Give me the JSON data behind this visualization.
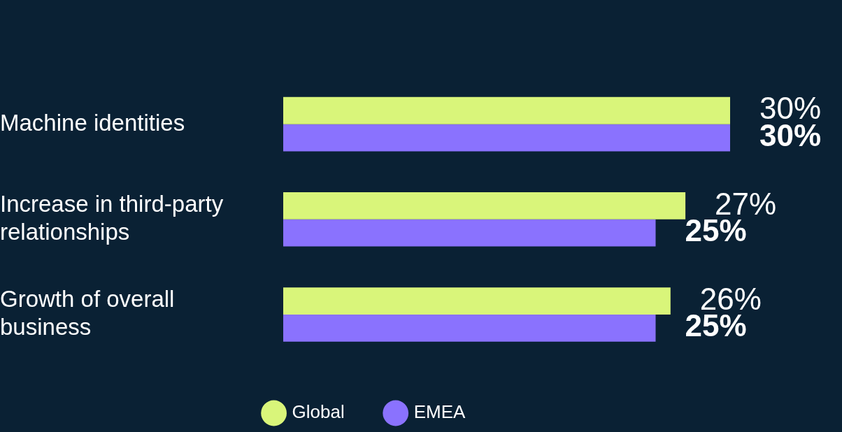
{
  "chart_data": {
    "type": "bar",
    "orientation": "horizontal",
    "categories": [
      "Machine identities",
      "Increase in third-party relationships",
      "Growth of overall business"
    ],
    "series": [
      {
        "name": "Global",
        "color": "#d9f57a",
        "values": [
          30,
          27,
          26
        ],
        "value_labels": [
          "30%",
          "27%",
          "26%"
        ]
      },
      {
        "name": "EMEA",
        "color": "#8a72fe",
        "values": [
          30,
          25,
          25
        ],
        "value_labels": [
          "30%",
          "25%",
          "25%"
        ]
      }
    ],
    "xlim": [
      0,
      30
    ],
    "tick_labels": "y",
    "grid": false,
    "legend": "bottom"
  }
}
